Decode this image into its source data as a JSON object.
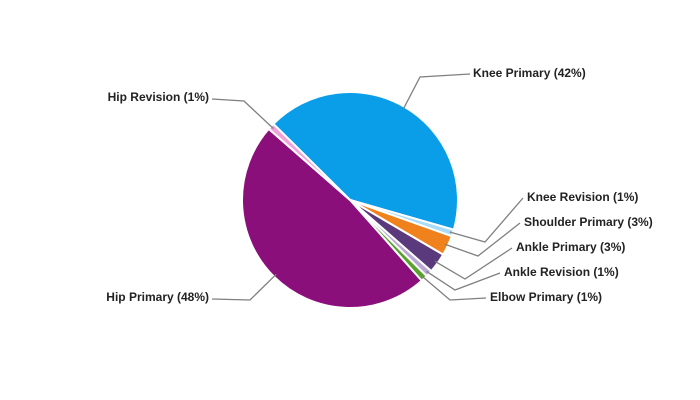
{
  "chart_data": {
    "type": "pie",
    "categories": [
      "Knee Primary (42%)",
      "Knee Revision (1%)",
      "Shoulder Primary (3%)",
      "Ankle Primary (3%)",
      "Ankle Revision (1%)",
      "Elbow Primary (1%)",
      "Hip Primary (48%)",
      "Hip Revision (1%)"
    ],
    "values": [
      42,
      1,
      3,
      3,
      1,
      1,
      48,
      1
    ],
    "colors": [
      "#0a9ee9",
      "#a9dcf6",
      "#f0821e",
      "#5a3a7c",
      "#b9a7d8",
      "#5aa02c",
      "#8a0f7b",
      "#f2a2da"
    ]
  }
}
